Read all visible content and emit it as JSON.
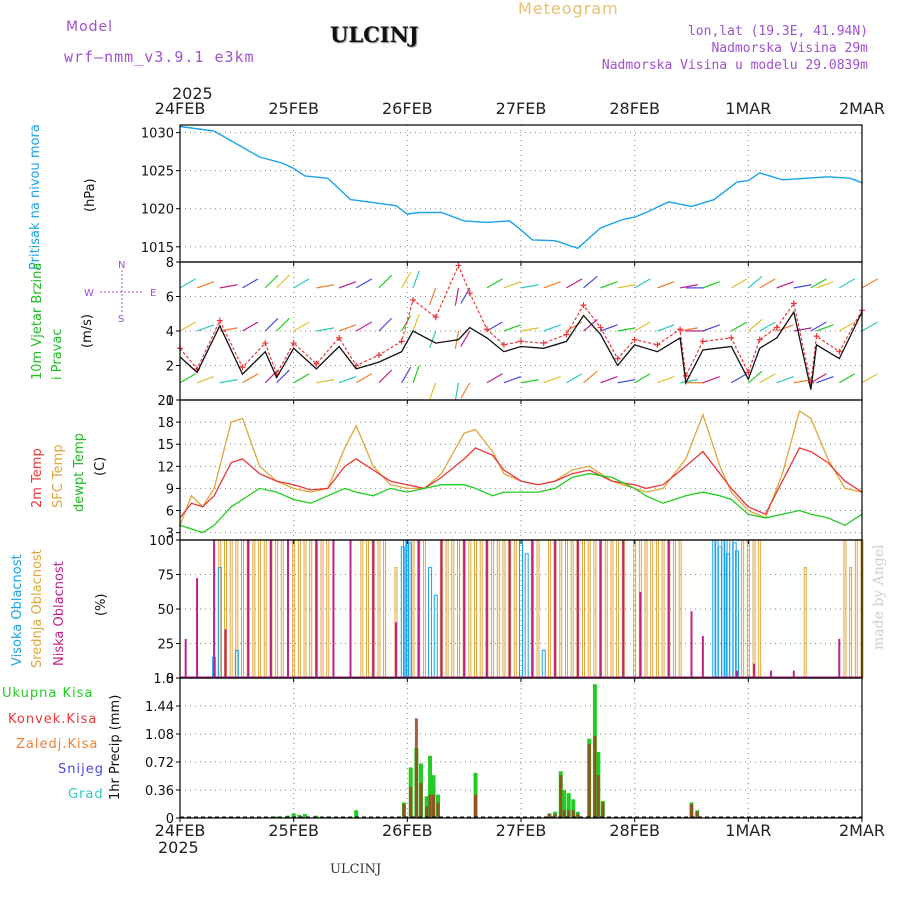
{
  "header": {
    "model_label": "Model",
    "model_name": "wrf—nmm_v3.9.1  e3km",
    "station": "ULCINJ",
    "product": "Meteogram",
    "lonlat": "lon,lat (19.3E, 41.94N)",
    "elevation": "Nadmorska Visina 29m",
    "model_elevation": "Nadmorska Visina u modelu 29.0839m",
    "footer_station": "ULCINJ",
    "credit": "made by Angel"
  },
  "colors": {
    "pressure": "#1aa3e8",
    "temp2m": "#e8383a",
    "sfc": "#e0a63a",
    "dew": "#22cc22",
    "high_cloud": "#1aa3e8",
    "mid_cloud": "#e0a63a",
    "low_cloud": "#c0208a",
    "grid": "#8a8a8a",
    "model_text": "#a050d0",
    "product_text": "#e8c070"
  },
  "time_axis": {
    "year": "2025",
    "labels": [
      "24FEB",
      "25FEB",
      "26FEB",
      "27FEB",
      "28FEB",
      "1MAR",
      "2MAR"
    ]
  },
  "chart_data": [
    {
      "type": "line",
      "id": "pressure",
      "ylabel_outer": "Pritisak na nivou mora",
      "ylabel_inner": "(hPa)",
      "ylim": [
        1013,
        1031
      ],
      "yticks": [
        1015,
        1020,
        1025,
        1030
      ],
      "x_days": [
        0,
        0.1,
        0.3,
        0.5,
        0.7,
        0.9,
        1.0,
        1.1,
        1.3,
        1.5,
        1.7,
        1.9,
        2.0,
        2.1,
        2.3,
        2.5,
        2.7,
        2.9,
        3.0,
        3.1,
        3.3,
        3.5,
        3.7,
        3.9,
        4.0,
        4.1,
        4.3,
        4.5,
        4.7,
        4.9,
        5.0,
        5.1,
        5.3,
        5.5,
        5.7,
        5.9,
        6.0
      ],
      "values": [
        1030.8,
        1030.6,
        1030.2,
        1028.5,
        1026.8,
        1026.0,
        1025.3,
        1024.3,
        1024.0,
        1021.2,
        1020.8,
        1020.4,
        1019.3,
        1019.5,
        1019.5,
        1018.4,
        1018.2,
        1018.4,
        1017.2,
        1015.9,
        1015.8,
        1014.8,
        1017.5,
        1018.6,
        1018.9,
        1019.5,
        1020.9,
        1020.3,
        1021.2,
        1023.5,
        1023.7,
        1024.7,
        1023.8,
        1024.0,
        1024.2,
        1024.0,
        1023.4
      ]
    },
    {
      "type": "line",
      "id": "wind",
      "ylabel_outer": "10m Vjetar Brzina i Pravac",
      "ylabel_inner": "(m/s)",
      "compass": "N",
      "compass_w": "W",
      "compass_e": "E",
      "compass_s": "S",
      "ylim": [
        0,
        8
      ],
      "yticks": [
        0,
        2,
        4,
        6,
        8
      ],
      "x_days": [
        0,
        0.15,
        0.35,
        0.55,
        0.75,
        0.85,
        1.0,
        1.2,
        1.4,
        1.55,
        1.75,
        1.95,
        2.05,
        2.25,
        2.45,
        2.55,
        2.7,
        2.85,
        3.0,
        3.2,
        3.4,
        3.55,
        3.7,
        3.85,
        4.0,
        4.2,
        4.4,
        4.45,
        4.6,
        4.85,
        5.0,
        5.1,
        5.25,
        5.4,
        5.55,
        5.6,
        5.8,
        6.0
      ],
      "speed": [
        2.5,
        1.6,
        4.3,
        1.5,
        2.8,
        1.3,
        3.0,
        1.8,
        3.1,
        1.8,
        2.2,
        2.8,
        4.0,
        3.3,
        3.5,
        4.2,
        3.6,
        2.8,
        3.1,
        3.0,
        3.4,
        4.9,
        3.8,
        2.0,
        3.2,
        2.8,
        3.6,
        1.0,
        2.9,
        3.1,
        1.2,
        3.0,
        3.6,
        5.1,
        0.6,
        3.2,
        2.4,
        5.1
      ],
      "gust": [
        3.0,
        1.8,
        4.6,
        1.9,
        3.3,
        1.5,
        3.3,
        2.1,
        3.6,
        2.0,
        2.6,
        3.4,
        5.8,
        4.8,
        7.8,
        6.2,
        4.1,
        3.2,
        3.4,
        3.3,
        3.8,
        5.5,
        4.2,
        2.4,
        3.5,
        3.2,
        4.1,
        1.4,
        3.4,
        3.6,
        1.6,
        3.5,
        4.2,
        5.6,
        1.0,
        3.7,
        2.8,
        5.2
      ],
      "direction_deg": [
        60,
        70,
        80,
        60,
        45,
        45,
        60,
        80,
        70,
        60,
        45,
        30,
        20,
        200,
        190,
        210,
        60,
        70,
        80,
        70,
        60,
        50,
        70,
        80,
        60,
        70,
        80,
        90,
        70,
        60,
        50,
        60,
        70,
        80,
        60,
        70,
        60,
        60
      ]
    },
    {
      "type": "line",
      "id": "temperature",
      "ylabel_outer1": "2m Temp",
      "ylabel_outer2": "SFC Temp",
      "ylabel_outer3": "dewpt Temp",
      "ylabel_inner": "(C)",
      "ylim": [
        2,
        21
      ],
      "yticks": [
        3,
        6,
        9,
        12,
        15,
        18,
        21
      ],
      "x_days": [
        0,
        0.1,
        0.2,
        0.3,
        0.45,
        0.55,
        0.7,
        0.85,
        1.0,
        1.15,
        1.3,
        1.45,
        1.55,
        1.7,
        1.85,
        2.0,
        2.15,
        2.3,
        2.5,
        2.6,
        2.75,
        2.85,
        3.0,
        3.15,
        3.3,
        3.45,
        3.6,
        3.8,
        4.0,
        4.1,
        4.25,
        4.45,
        4.6,
        4.75,
        4.85,
        5.0,
        5.15,
        5.3,
        5.45,
        5.55,
        5.7,
        5.85,
        6.0
      ],
      "t2m": [
        5.0,
        7.0,
        6.5,
        8.0,
        12.5,
        13.0,
        11.0,
        10.0,
        9.5,
        8.8,
        9.0,
        12.0,
        13.0,
        11.5,
        10.0,
        9.5,
        9.0,
        10.5,
        13.0,
        14.5,
        13.5,
        11.5,
        10.0,
        9.5,
        10.0,
        11.0,
        11.5,
        10.0,
        9.5,
        9.0,
        9.5,
        12.0,
        14.0,
        11.0,
        9.0,
        6.5,
        5.5,
        10.0,
        14.5,
        14.0,
        12.5,
        10.0,
        8.5
      ],
      "sfc": [
        4.0,
        8.0,
        6.5,
        9.0,
        18.0,
        18.5,
        12.0,
        10.0,
        9.0,
        8.5,
        9.0,
        14.5,
        17.5,
        12.0,
        9.5,
        9.0,
        9.0,
        11.0,
        16.5,
        17.0,
        14.0,
        11.0,
        10.0,
        9.5,
        10.0,
        11.5,
        12.0,
        10.0,
        9.0,
        8.5,
        9.0,
        13.0,
        19.0,
        12.0,
        8.5,
        6.0,
        5.0,
        11.0,
        19.5,
        18.5,
        13.0,
        9.0,
        8.5
      ],
      "dew": [
        4.0,
        3.5,
        3.0,
        4.0,
        6.5,
        7.5,
        9.0,
        8.5,
        7.5,
        7.0,
        8.0,
        9.0,
        8.5,
        8.0,
        9.0,
        8.5,
        9.0,
        9.5,
        9.5,
        9.0,
        8.0,
        8.5,
        8.5,
        8.5,
        9.0,
        10.5,
        11.0,
        10.5,
        9.0,
        8.0,
        7.0,
        8.0,
        8.5,
        8.0,
        7.5,
        5.5,
        5.0,
        5.5,
        6.0,
        5.5,
        5.0,
        4.0,
        5.5
      ]
    },
    {
      "type": "bar",
      "id": "cloud",
      "ylabel_outer1": "Visoka Oblacnost",
      "ylabel_outer2": "Srednja Oblacnost",
      "ylabel_outer3": "Niska Oblacnost",
      "ylabel_inner": "(%)",
      "ylim": [
        0,
        100
      ],
      "yticks": [
        0,
        25,
        50,
        75,
        100
      ],
      "high_cloud": {
        "x_days": [
          0.3,
          0.35,
          0.5,
          1.96,
          1.98,
          2.0,
          2.02,
          2.2,
          2.25,
          3.0,
          3.05,
          3.2,
          4.7,
          4.72,
          4.75,
          4.78,
          4.8,
          4.82,
          4.85,
          4.88,
          4.9
        ],
        "values": [
          15,
          80,
          20,
          95,
          100,
          100,
          98,
          80,
          60,
          100,
          90,
          20,
          100,
          100,
          95,
          100,
          100,
          90,
          100,
          98,
          92
        ]
      },
      "mid_cloud": {
        "x_days": [
          0.35,
          0.4,
          0.45,
          0.5,
          0.55,
          0.6,
          0.65,
          0.7,
          0.75,
          0.8,
          0.85,
          0.9,
          1.0,
          1.05,
          1.1,
          1.15,
          1.2,
          1.25,
          1.3,
          1.6,
          1.65,
          1.7,
          1.75,
          1.8,
          1.9,
          2.05,
          2.1,
          2.15,
          2.3,
          2.35,
          2.4,
          2.45,
          2.5,
          2.55,
          2.6,
          2.65,
          2.7,
          2.75,
          2.8,
          2.85,
          2.9,
          2.95,
          3.1,
          3.15,
          3.25,
          3.3,
          3.35,
          3.4,
          3.45,
          3.5,
          3.55,
          3.6,
          3.65,
          3.7,
          3.75,
          3.8,
          3.85,
          3.9,
          4.0,
          4.05,
          4.1,
          4.15,
          4.2,
          4.25,
          4.3,
          4.35,
          4.4,
          4.95,
          5.0,
          5.05,
          5.1,
          5.5,
          5.85,
          5.9,
          5.95,
          6.0
        ],
        "values": [
          100,
          100,
          100,
          100,
          100,
          100,
          100,
          100,
          100,
          100,
          100,
          100,
          100,
          100,
          100,
          100,
          100,
          100,
          100,
          100,
          100,
          100,
          100,
          100,
          80,
          100,
          100,
          100,
          100,
          100,
          100,
          100,
          100,
          100,
          100,
          100,
          100,
          100,
          100,
          100,
          100,
          100,
          100,
          100,
          100,
          100,
          100,
          100,
          100,
          100,
          100,
          100,
          100,
          100,
          100,
          100,
          100,
          100,
          100,
          100,
          100,
          100,
          100,
          100,
          100,
          100,
          100,
          100,
          100,
          100,
          100,
          80,
          100,
          80,
          100,
          100
        ]
      },
      "low_cloud": {
        "x_days": [
          0.05,
          0.15,
          0.3,
          0.4,
          0.6,
          0.8,
          0.95,
          1.2,
          1.35,
          1.5,
          1.7,
          1.9,
          2.1,
          2.3,
          2.5,
          2.7,
          2.9,
          3.1,
          3.3,
          3.5,
          3.7,
          3.9,
          4.05,
          4.3,
          4.5,
          4.6,
          4.9,
          5.05,
          5.2,
          5.4,
          5.8
        ],
        "values": [
          28,
          72,
          100,
          35,
          100,
          100,
          100,
          100,
          100,
          100,
          100,
          40,
          100,
          100,
          100,
          100,
          100,
          100,
          100,
          100,
          100,
          100,
          62,
          100,
          48,
          30,
          5,
          10,
          5,
          5,
          28
        ]
      }
    },
    {
      "type": "bar",
      "id": "precip",
      "legend": [
        "Ukupna Kisa",
        "Konvek.Kisa",
        "Zaledj.Kisa",
        "Snijeg",
        "Grad"
      ],
      "legend_colors": [
        "#22cc22",
        "#e8383a",
        "#f08030",
        "#4a4ae0",
        "#30c8c0"
      ],
      "ylabel_inner": "1hr Precip (mm)",
      "ylim": [
        0,
        1.8
      ],
      "yticks": [
        0,
        0.36,
        0.72,
        1.08,
        1.44,
        1.8
      ],
      "x_days": [
        0.85,
        0.95,
        1.0,
        1.05,
        1.1,
        1.2,
        1.3,
        1.55,
        1.97,
        2.03,
        2.08,
        2.12,
        2.17,
        2.2,
        2.23,
        2.27,
        2.6,
        3.25,
        3.3,
        3.35,
        3.38,
        3.42,
        3.46,
        3.5,
        3.6,
        3.65,
        3.68,
        3.72,
        4.5,
        4.55
      ],
      "total": [
        0.02,
        0.03,
        0.06,
        0.04,
        0.05,
        0.03,
        0.02,
        0.1,
        0.2,
        0.65,
        0.9,
        0.7,
        0.28,
        0.8,
        0.55,
        0.3,
        0.58,
        0.06,
        0.08,
        0.6,
        0.36,
        0.32,
        0.24,
        0.08,
        1.02,
        1.72,
        0.85,
        0.22,
        0.2,
        0.1
      ],
      "convective": [
        0.0,
        0.0,
        0.0,
        0.0,
        0.0,
        0.0,
        0.0,
        0.0,
        0.18,
        0.4,
        1.28,
        0.45,
        0.15,
        0.3,
        0.3,
        0.2,
        0.3,
        0.05,
        0.05,
        0.55,
        0.1,
        0.1,
        0.1,
        0.05,
        0.95,
        1.05,
        0.55,
        0.2,
        0.18,
        0.08
      ]
    }
  ]
}
